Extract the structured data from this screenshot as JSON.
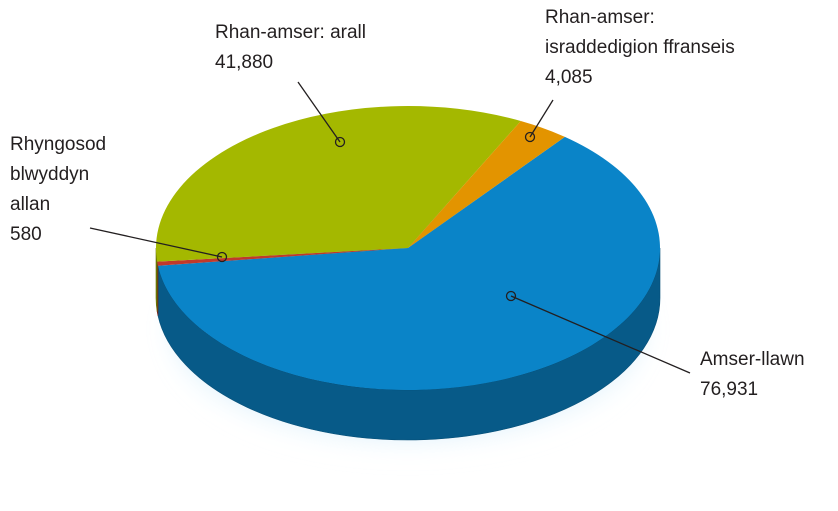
{
  "chart_data": {
    "type": "pie",
    "categories": [
      "Amser-llawn",
      "Rhyngosod\nblwyddyn\nallan",
      "Rhan-amser: arall",
      "Rhan-amser:\nisraddedigion ffranseis"
    ],
    "values": [
      76931,
      580,
      41880,
      4085
    ],
    "value_labels": [
      "76,931",
      "580",
      "41,880",
      "4,085"
    ],
    "colors": [
      "#0a84c8",
      "#c0392b",
      "#a4b800",
      "#e39400"
    ]
  }
}
